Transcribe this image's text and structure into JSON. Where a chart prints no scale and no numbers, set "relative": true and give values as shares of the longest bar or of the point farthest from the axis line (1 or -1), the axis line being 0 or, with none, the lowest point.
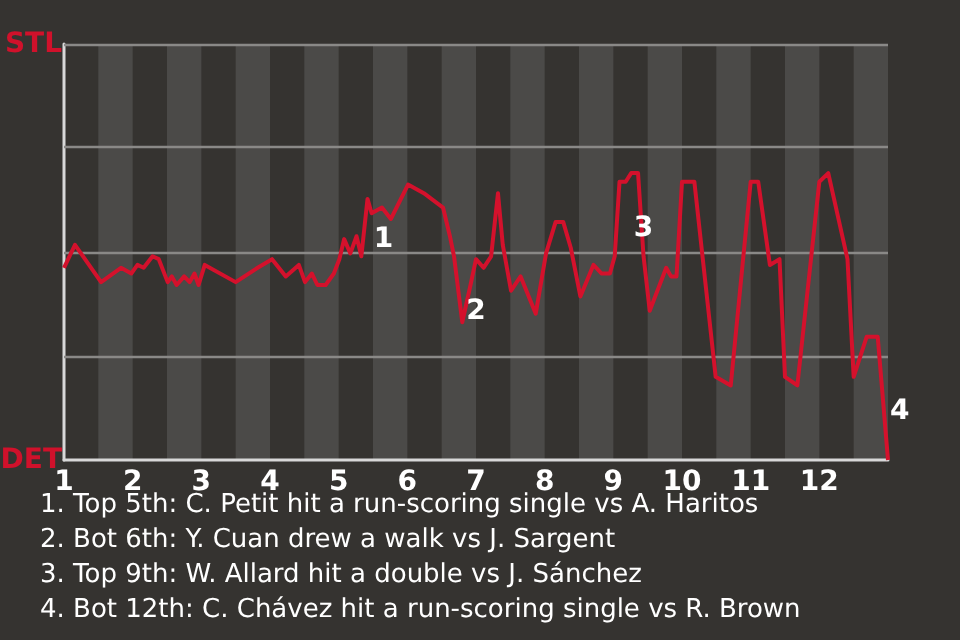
{
  "chart_data": {
    "type": "line",
    "color": "#d4112c",
    "relative": true,
    "x": [
      1,
      1.16,
      1.54,
      1.83,
      1.98,
      2.07,
      2.16,
      2.29,
      2.38,
      2.51,
      2.57,
      2.64,
      2.75,
      2.83,
      2.9,
      2.96,
      3.05,
      3.5,
      3.82,
      4.03,
      4.23,
      4.42,
      4.51,
      4.61,
      4.69,
      4.81,
      4.93,
      5.01,
      5.08,
      5.17,
      5.26,
      5.33,
      5.42,
      5.48,
      5.63,
      5.76,
      6.01,
      6.24,
      6.52,
      6.62,
      6.68,
      6.8,
      6.92,
      7,
      7.11,
      7.22,
      7.32,
      7.39,
      7.51,
      7.65,
      7.87,
      8.02,
      8.16,
      8.27,
      8.38,
      8.52,
      8.71,
      8.83,
      8.95,
      9.02,
      9.09,
      9.18,
      9.26,
      9.36,
      9.44,
      9.53,
      9.77,
      9.84,
      9.92,
      10,
      10.18,
      10.49,
      10.71,
      11,
      11.11,
      11.28,
      11.42,
      11.5,
      11.68,
      12,
      12.13,
      12.41,
      12.5,
      12.69,
      12.85,
      13
    ],
    "values": [
      0.67,
      0.75,
      0.62,
      0.67,
      0.65,
      0.68,
      0.67,
      0.71,
      0.7,
      0.62,
      0.64,
      0.61,
      0.64,
      0.62,
      0.65,
      0.61,
      0.68,
      0.62,
      0.67,
      0.7,
      0.64,
      0.68,
      0.62,
      0.65,
      0.61,
      0.61,
      0.65,
      0.7,
      0.77,
      0.72,
      0.78,
      0.71,
      0.91,
      0.86,
      0.88,
      0.84,
      0.96,
      0.93,
      0.88,
      0.78,
      0.71,
      0.48,
      0.61,
      0.7,
      0.67,
      0.71,
      0.93,
      0.75,
      0.59,
      0.64,
      0.51,
      0.72,
      0.83,
      0.83,
      0.74,
      0.57,
      0.68,
      0.65,
      0.65,
      0.71,
      0.97,
      0.97,
      1,
      1,
      0.71,
      0.52,
      0.67,
      0.64,
      0.64,
      0.97,
      0.97,
      0.29,
      0.26,
      0.97,
      0.97,
      0.68,
      0.7,
      0.29,
      0.26,
      0.97,
      1,
      0.7,
      0.29,
      0.43,
      0.43,
      0
    ],
    "xlim": [
      1,
      13
    ],
    "xticks": [
      1,
      2,
      3,
      4,
      5,
      6,
      7,
      8,
      9,
      10,
      11,
      12
    ],
    "ref_lines": [
      {
        "axis": "y",
        "value": 0.36,
        "color": "#8a8987"
      },
      {
        "axis": "y",
        "value": 0.72,
        "color": "#8a8987"
      },
      {
        "axis": "y",
        "value": 1.09,
        "color": "#8a8987"
      },
      {
        "axis": "y",
        "value": 1.45,
        "color": "#8a8987"
      }
    ],
    "marker": "none",
    "bands": [
      {
        "axis": "x",
        "from": 1.5,
        "to": 2,
        "color": "#4b4a48"
      },
      {
        "axis": "x",
        "from": 2.5,
        "to": 3,
        "color": "#4b4a48"
      },
      {
        "axis": "x",
        "from": 3.5,
        "to": 4,
        "color": "#4b4a48"
      },
      {
        "axis": "x",
        "from": 4.5,
        "to": 5,
        "color": "#4b4a48"
      },
      {
        "axis": "x",
        "from": 5.5,
        "to": 6,
        "color": "#4b4a48"
      },
      {
        "axis": "x",
        "from": 6.5,
        "to": 7,
        "color": "#4b4a48"
      },
      {
        "axis": "x",
        "from": 7.5,
        "to": 8,
        "color": "#4b4a48"
      },
      {
        "axis": "x",
        "from": 8.5,
        "to": 9,
        "color": "#4b4a48"
      },
      {
        "axis": "x",
        "from": 9.5,
        "to": 10,
        "color": "#4b4a48"
      },
      {
        "axis": "x",
        "from": 10.5,
        "to": 11,
        "color": "#4b4a48"
      },
      {
        "axis": "x",
        "from": 11.5,
        "to": 12,
        "color": "#4b4a48"
      },
      {
        "axis": "x",
        "from": 12.5,
        "to": 13,
        "color": "#4b4a48"
      }
    ],
    "annotations": [
      "STL",
      "DET",
      {
        "text": "1",
        "x": 5.48,
        "y": 0.77
      },
      {
        "text": "2",
        "x": 6.83,
        "y": 0.52
      },
      {
        "text": "3",
        "x": 9.27,
        "y": 0.81
      },
      {
        "text": "4",
        "x": 13,
        "y": 0.17
      },
      "1. Top 5th: C. Petit hit a run-scoring single vs A. Haritos",
      "2. Bot 6th: Y. Cuan drew a walk vs J. Sargent",
      "3. Top 9th: W. Allard hit a double vs J. Sánchez",
      "4. Bot 12th: C. Chávez hit a run-scoring single vs R. Brown"
    ]
  }
}
